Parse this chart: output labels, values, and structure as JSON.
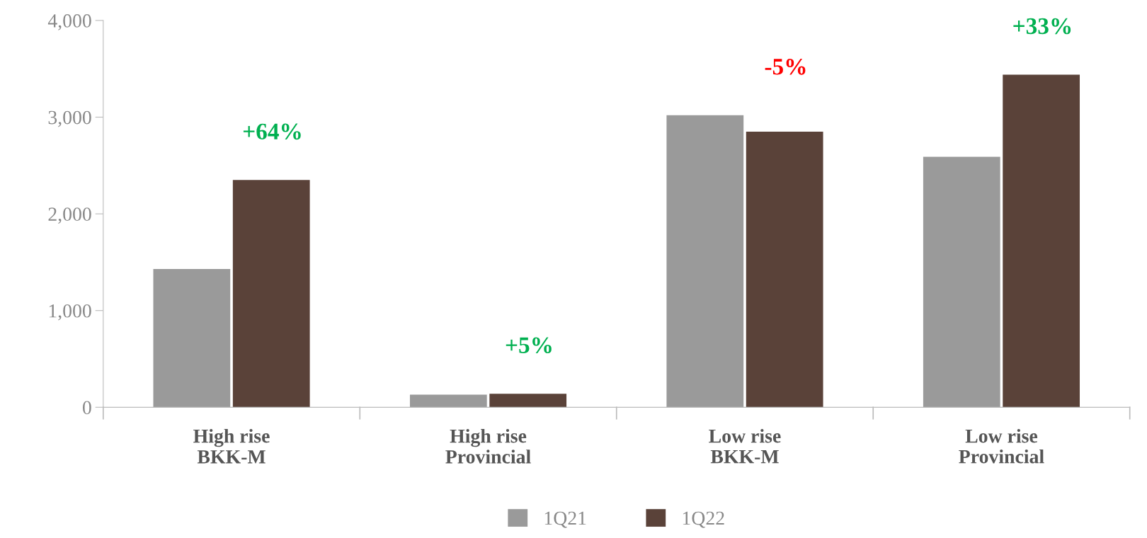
{
  "chart_data": {
    "type": "bar",
    "categories": [
      "High rise\nBKK-M",
      "High rise\nProvincial",
      "Low rise\nBKK-M",
      "Low rise\nProvincial"
    ],
    "series": [
      {
        "name": "1Q21",
        "color": "#9a9a9a",
        "values": [
          1430,
          130,
          3020,
          2590
        ]
      },
      {
        "name": "1Q22",
        "color": "#5a4239",
        "values": [
          2350,
          140,
          2850,
          3440
        ]
      }
    ],
    "ylim": [
      0,
      4000
    ],
    "yticks": [
      {
        "value": 0,
        "label": "0"
      },
      {
        "value": 1000,
        "label": "1,000"
      },
      {
        "value": 2000,
        "label": "2,000"
      },
      {
        "value": 3000,
        "label": "3,000"
      },
      {
        "value": 4000,
        "label": "4,000"
      }
    ],
    "annotations": [
      "+64%",
      "+5%",
      "-5%",
      "+33%"
    ],
    "grid": false,
    "legend": "bottom"
  }
}
